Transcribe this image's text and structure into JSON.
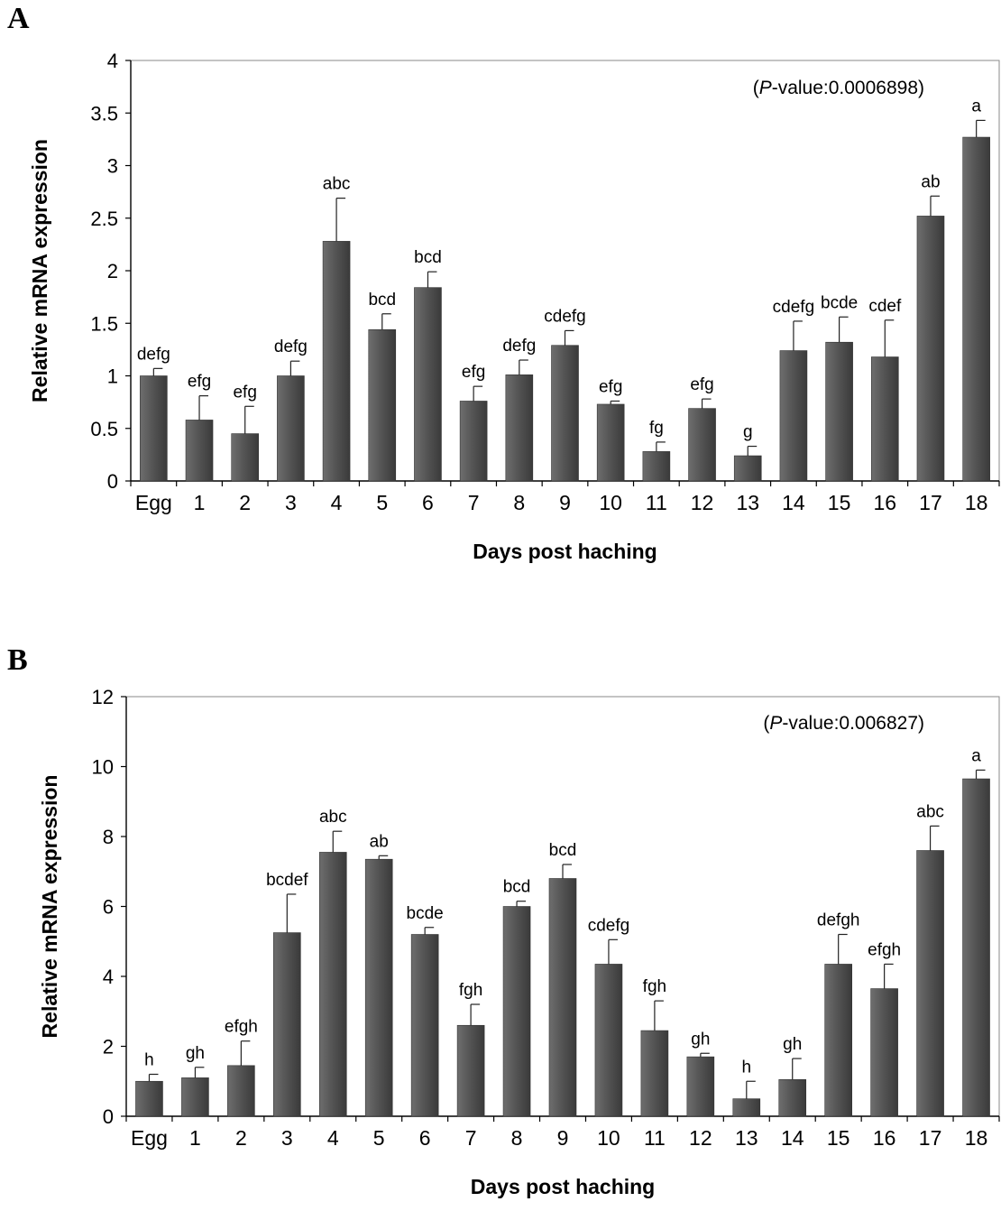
{
  "chart_data": [
    {
      "panel_label": "A",
      "type": "bar",
      "annotation": "(P-value:0.0006898)",
      "annotation_prefix": "(",
      "annotation_p": "P",
      "annotation_rest": "-value:0.0006898)",
      "xlabel": "Days post haching",
      "ylabel": "Relative mRNA expression",
      "ylim": [
        0,
        4
      ],
      "yticks": [
        "0",
        "0.5",
        "1",
        "1.5",
        "2",
        "2.5",
        "3",
        "3.5",
        "4"
      ],
      "ytick_values": [
        0,
        0.5,
        1,
        1.5,
        2,
        2.5,
        3,
        3.5,
        4
      ],
      "categories": [
        "Egg",
        "1",
        "2",
        "3",
        "4",
        "5",
        "6",
        "7",
        "8",
        "9",
        "10",
        "11",
        "12",
        "13",
        "14",
        "15",
        "16",
        "17",
        "18"
      ],
      "values": [
        1.0,
        0.58,
        0.45,
        1.0,
        2.28,
        1.44,
        1.84,
        0.76,
        1.01,
        1.29,
        0.73,
        0.28,
        0.69,
        0.24,
        1.24,
        1.32,
        1.18,
        2.52,
        3.27
      ],
      "errors": [
        0.07,
        0.23,
        0.26,
        0.14,
        0.41,
        0.15,
        0.15,
        0.14,
        0.14,
        0.14,
        0.03,
        0.09,
        0.09,
        0.09,
        0.28,
        0.24,
        0.35,
        0.19,
        0.16
      ],
      "letters": [
        "defg",
        "efg",
        "efg",
        "defg",
        "abc",
        "bcd",
        "bcd",
        "efg",
        "defg",
        "cdefg",
        "efg",
        "fg",
        "efg",
        "g",
        "cdefg",
        "bcde",
        "cdef",
        "ab",
        "a"
      ],
      "bar_color": "#555555"
    },
    {
      "panel_label": "B",
      "type": "bar",
      "annotation": "(P-value:0.006827)",
      "annotation_prefix": "(",
      "annotation_p": "P",
      "annotation_rest": "-value:0.006827)",
      "xlabel": "Days post haching",
      "ylabel": "Relative mRNA expression",
      "ylim": [
        0,
        12
      ],
      "yticks": [
        "0",
        "2",
        "4",
        "6",
        "8",
        "10",
        "12"
      ],
      "ytick_values": [
        0,
        2,
        4,
        6,
        8,
        10,
        12
      ],
      "categories": [
        "Egg",
        "1",
        "2",
        "3",
        "4",
        "5",
        "6",
        "7",
        "8",
        "9",
        "10",
        "11",
        "12",
        "13",
        "14",
        "15",
        "16",
        "17",
        "18"
      ],
      "values": [
        1.0,
        1.1,
        1.45,
        5.25,
        7.55,
        7.35,
        5.2,
        2.6,
        6.0,
        6.8,
        4.35,
        2.45,
        1.7,
        0.5,
        1.05,
        4.35,
        3.65,
        7.6,
        9.65
      ],
      "errors": [
        0.2,
        0.3,
        0.7,
        1.1,
        0.6,
        0.1,
        0.2,
        0.6,
        0.15,
        0.4,
        0.7,
        0.85,
        0.1,
        0.5,
        0.6,
        0.85,
        0.7,
        0.7,
        0.25
      ],
      "letters": [
        "h",
        "gh",
        "efgh",
        "bcdef",
        "abc",
        "ab",
        "bcde",
        "fgh",
        "bcd",
        "bcd",
        "cdefg",
        "fgh",
        "gh",
        "h",
        "gh",
        "defgh",
        "efgh",
        "abc",
        "a"
      ],
      "bar_color": "#555555"
    }
  ]
}
